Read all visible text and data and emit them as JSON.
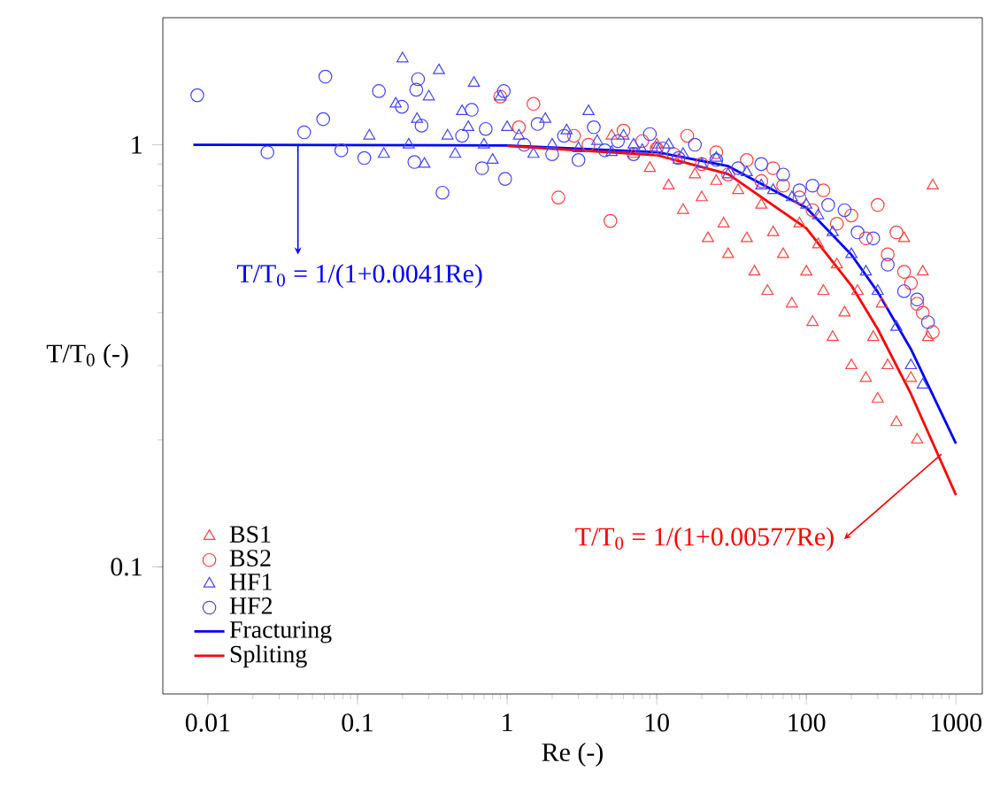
{
  "chart_data": {
    "type": "scatter",
    "xlabel": "Re (-)",
    "ylabel": "T/T$_{0}$ (-)",
    "log": "xy",
    "xlim": [
      0.005,
      1500
    ],
    "ylim": [
      0.05,
      2
    ],
    "xticks": [
      0.01,
      0.1,
      1,
      10,
      100,
      1000
    ],
    "yticks": [
      0.1,
      1
    ],
    "legend": "bottom left",
    "series": [
      {
        "name": "BS1",
        "color": "#ff4040",
        "marker": "triangle",
        "x": [
          5,
          7,
          9,
          10,
          12,
          14,
          15,
          18,
          20,
          22,
          25,
          28,
          30,
          35,
          40,
          45,
          50,
          55,
          60,
          70,
          80,
          90,
          100,
          110,
          120,
          130,
          150,
          160,
          180,
          200,
          220,
          250,
          280,
          300,
          320,
          350,
          400,
          450,
          500,
          550,
          600,
          650,
          700
        ],
        "values": [
          1.05,
          0.95,
          0.88,
          1.0,
          0.8,
          0.92,
          0.7,
          0.85,
          0.75,
          0.6,
          0.82,
          0.65,
          0.55,
          0.78,
          0.6,
          0.5,
          0.72,
          0.45,
          0.62,
          0.55,
          0.42,
          0.65,
          0.5,
          0.38,
          0.58,
          0.45,
          0.35,
          0.52,
          0.4,
          0.3,
          0.45,
          0.28,
          0.35,
          0.25,
          0.42,
          0.3,
          0.22,
          0.6,
          0.28,
          0.2,
          0.5,
          0.35,
          0.8
        ]
      },
      {
        "name": "BS2",
        "color": "#ff4040",
        "marker": "circle",
        "x": [
          0.9,
          1.2,
          1.5,
          2.2,
          2.8,
          3.5,
          4.9,
          6,
          8,
          10,
          13,
          16,
          20,
          25,
          30,
          40,
          50,
          60,
          70,
          90,
          110,
          130,
          160,
          200,
          250,
          300,
          350,
          400,
          450,
          500,
          550,
          600,
          700
        ],
        "values": [
          1.3,
          1.1,
          1.25,
          0.75,
          1.05,
          1.0,
          0.66,
          1.08,
          1.02,
          0.98,
          0.95,
          1.05,
          0.9,
          0.96,
          0.85,
          0.92,
          0.82,
          0.88,
          0.8,
          0.75,
          0.7,
          0.78,
          0.65,
          0.68,
          0.6,
          0.72,
          0.55,
          0.62,
          0.5,
          0.47,
          0.42,
          0.4,
          0.36
        ]
      },
      {
        "name": "HF1",
        "color": "#4444ff",
        "marker": "triangle",
        "x": [
          0.12,
          0.15,
          0.18,
          0.2,
          0.22,
          0.25,
          0.28,
          0.3,
          0.35,
          0.4,
          0.45,
          0.5,
          0.55,
          0.6,
          0.7,
          0.8,
          0.9,
          1.0,
          1.2,
          1.5,
          1.8,
          2,
          2.5,
          3,
          3.5,
          4,
          5,
          6,
          7,
          8,
          10,
          12,
          15,
          20,
          25,
          30,
          40,
          50,
          60,
          80,
          100,
          120,
          150,
          200,
          250,
          300,
          400,
          500,
          600
        ],
        "values": [
          1.05,
          0.95,
          1.25,
          1.6,
          1.0,
          1.15,
          0.9,
          1.3,
          1.5,
          1.05,
          0.95,
          1.2,
          1.1,
          1.4,
          1.0,
          0.92,
          1.3,
          1.1,
          1.05,
          0.95,
          1.15,
          1.0,
          1.08,
          0.98,
          1.2,
          1.02,
          0.96,
          1.05,
          1.0,
          0.97,
          0.98,
          1.0,
          0.95,
          0.9,
          0.93,
          0.85,
          0.86,
          0.8,
          0.78,
          0.75,
          0.72,
          0.68,
          0.62,
          0.55,
          0.5,
          0.45,
          0.37,
          0.3,
          0.27
        ]
      },
      {
        "name": "HF2",
        "color": "#4444ff",
        "marker": "circle",
        "x": [
          0.0085,
          0.025,
          0.044,
          0.061,
          0.059,
          0.078,
          0.111,
          0.139,
          0.198,
          0.24,
          0.247,
          0.254,
          0.268,
          0.37,
          0.5,
          0.58,
          0.68,
          0.72,
          0.95,
          0.97,
          1.3,
          1.6,
          2,
          2.4,
          3,
          3.8,
          4.5,
          5.5,
          7,
          9,
          11,
          14,
          18,
          25,
          35,
          50,
          70,
          90,
          110,
          140,
          180,
          220,
          280,
          350,
          450,
          550,
          650
        ],
        "values": [
          1.31,
          0.96,
          1.07,
          1.45,
          1.15,
          0.97,
          0.93,
          1.34,
          1.23,
          0.91,
          1.35,
          1.43,
          1.11,
          0.77,
          1.05,
          1.21,
          0.88,
          1.09,
          1.34,
          0.83,
          1.0,
          1.12,
          0.95,
          1.05,
          0.92,
          1.1,
          0.97,
          1.02,
          0.95,
          1.06,
          0.98,
          0.93,
          1.0,
          0.92,
          0.88,
          0.9,
          0.85,
          0.78,
          0.8,
          0.72,
          0.7,
          0.62,
          0.6,
          0.52,
          0.45,
          0.43,
          0.38
        ]
      },
      {
        "name": "Fracturing",
        "type": "line",
        "color": "#0000ff",
        "marker": "none",
        "x": [
          0.008,
          1,
          10,
          30,
          100,
          200,
          300,
          500,
          1000
        ],
        "values": [
          1,
          0.996,
          0.961,
          0.89,
          0.709,
          0.549,
          0.448,
          0.328,
          0.196
        ]
      },
      {
        "name": "Spliting",
        "type": "line",
        "color": "#ff0000",
        "marker": "none",
        "x": [
          1,
          10,
          30,
          100,
          200,
          300,
          500,
          1000
        ],
        "values": [
          0.994,
          0.945,
          0.852,
          0.634,
          0.464,
          0.366,
          0.257,
          0.148
        ]
      }
    ],
    "annotations": [
      {
        "text": "T/T$_{0}$ = 1/(1+0.0041Re)",
        "x": 0.04,
        "y": 1
      },
      {
        "text": "T/T$_{0}$ = 1/(1+0.00577Re)",
        "x": 800,
        "y": 0.185
      }
    ]
  }
}
